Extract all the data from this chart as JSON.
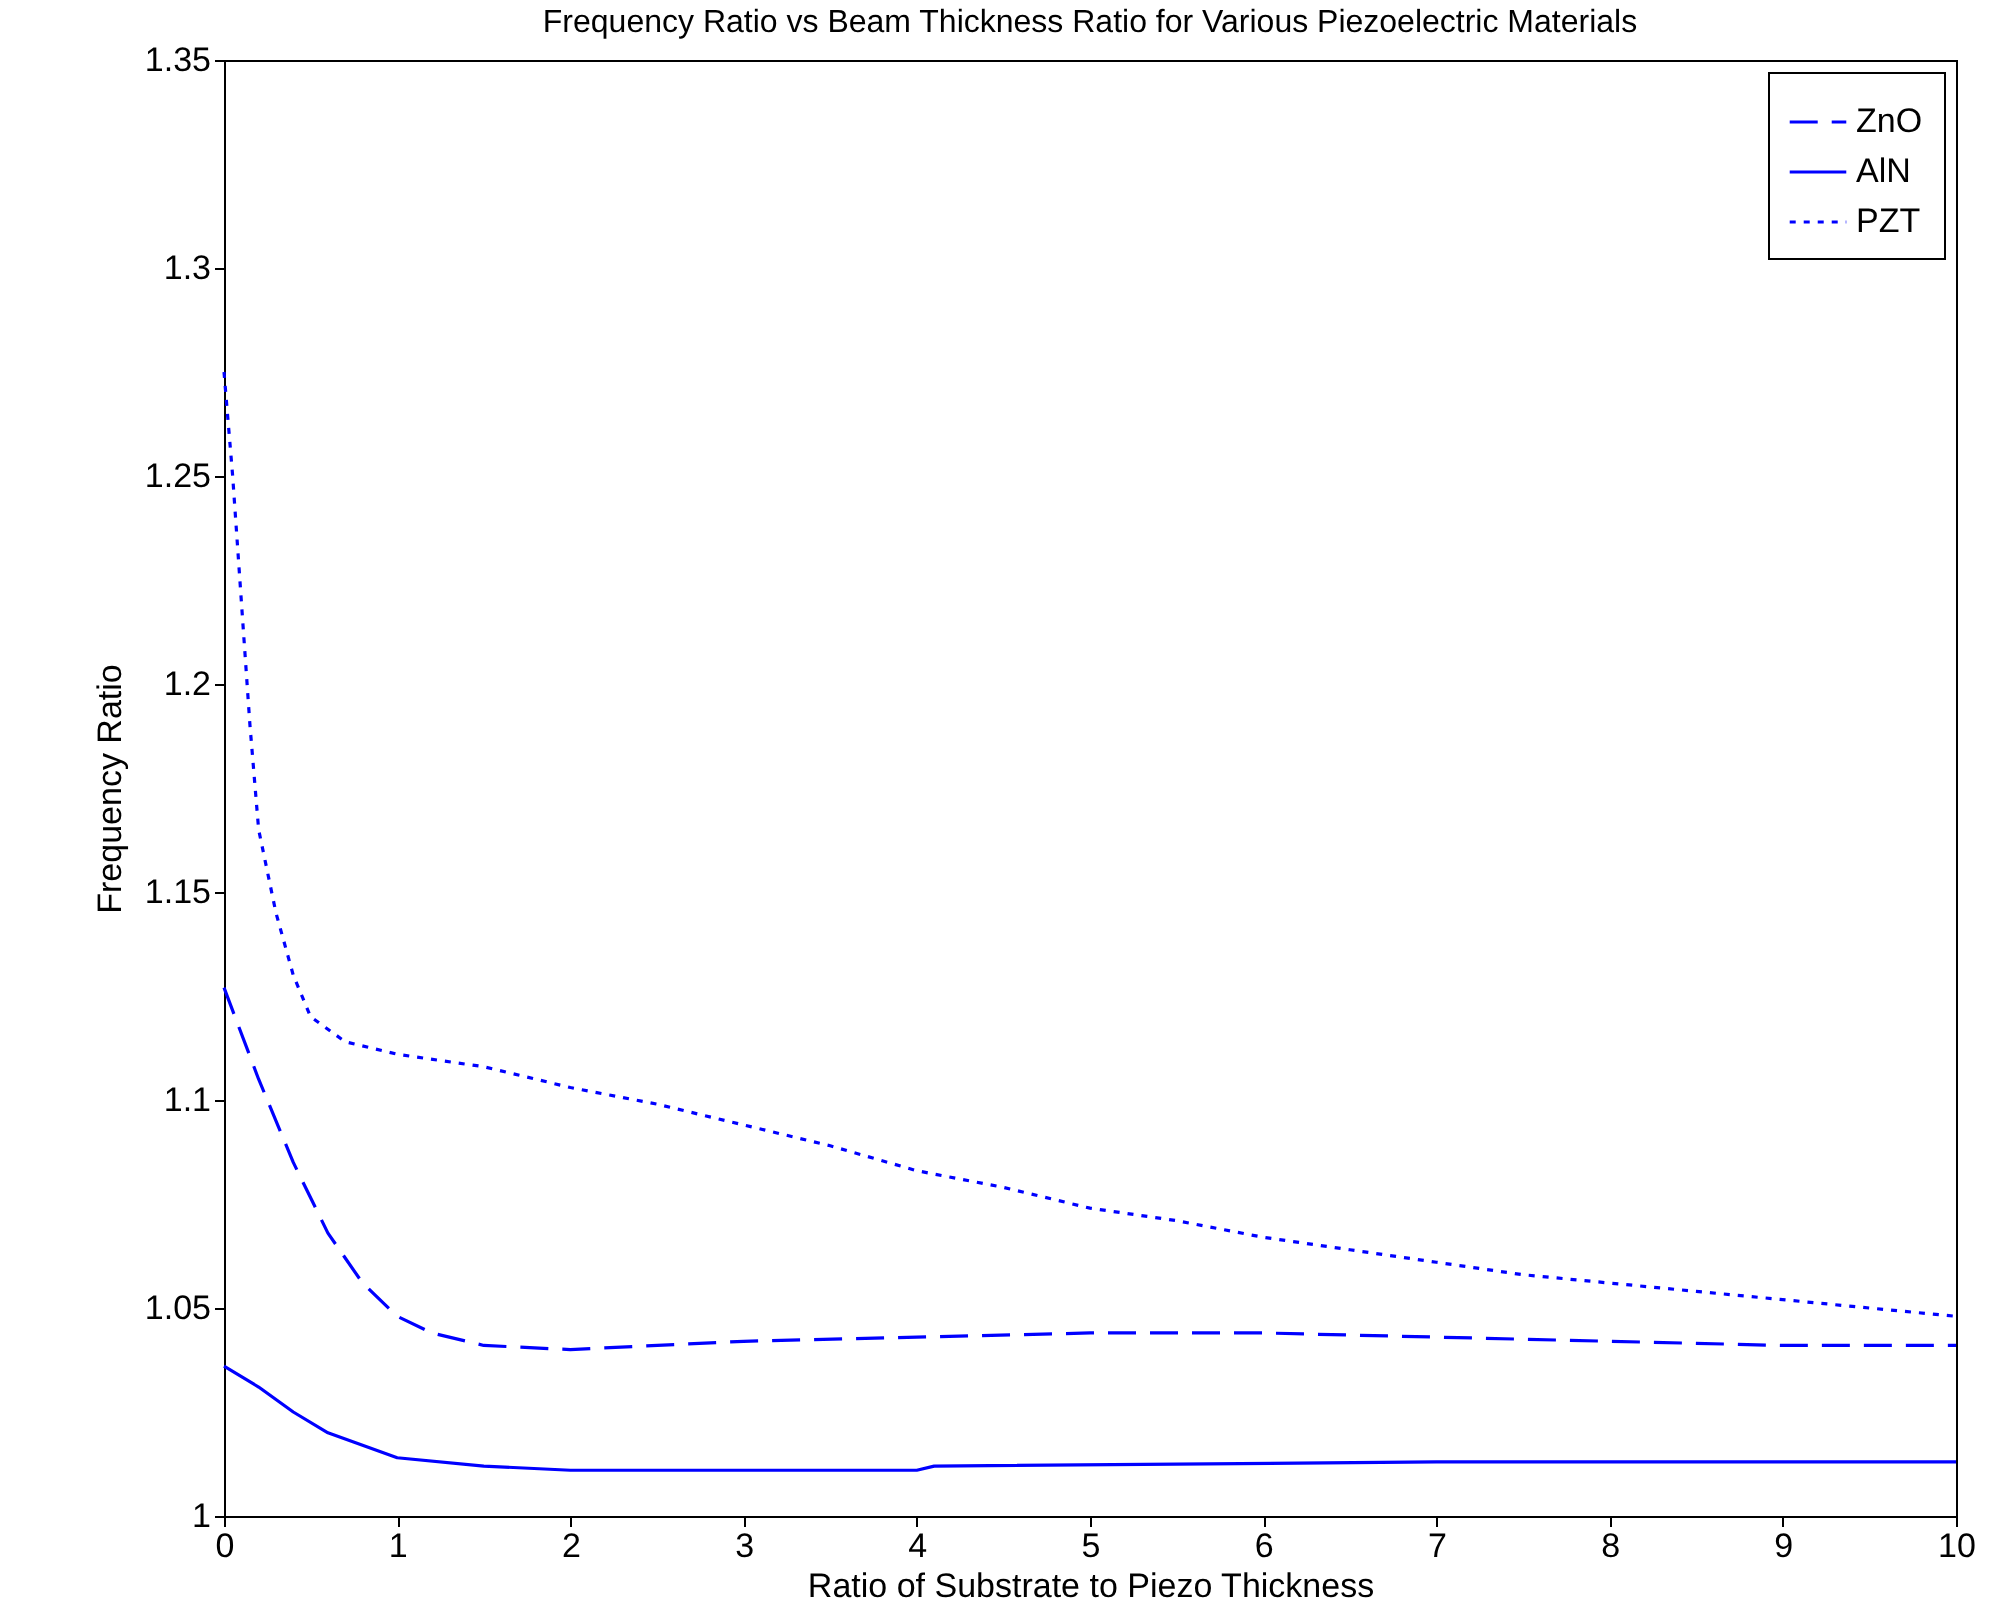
{
  "chart_data": {
    "type": "line",
    "title": "Frequency Ratio vs Beam Thickness Ratio for Various Piezoelectric Materials",
    "xlabel": "Ratio of Substrate to Piezo Thickness",
    "ylabel": "Frequency Ratio",
    "xlim": [
      0,
      10
    ],
    "xticks": [
      0,
      1,
      2,
      3,
      4,
      5,
      6,
      7,
      8,
      9,
      10
    ],
    "ylim": [
      1,
      1.35
    ],
    "yticks": [
      1,
      1.05,
      1.1,
      1.15,
      1.2,
      1.25,
      1.3,
      1.35
    ],
    "grid": false,
    "legend": "top right",
    "marker": "none",
    "series": [
      {
        "name": "ZnO",
        "color": "#0000ff",
        "line_style": "dashed",
        "x": [
          0,
          0.2,
          0.4,
          0.6,
          0.8,
          1,
          1.2,
          1.5,
          2,
          3,
          4,
          5,
          6,
          7,
          8,
          9,
          10
        ],
        "values": [
          1.127,
          1.105,
          1.085,
          1.068,
          1.056,
          1.048,
          1.044,
          1.041,
          1.04,
          1.042,
          1.043,
          1.044,
          1.044,
          1.043,
          1.042,
          1.041,
          1.041
        ]
      },
      {
        "name": "AlN",
        "color": "#0000ff",
        "line_style": "solid",
        "x": [
          0,
          0.2,
          0.4,
          0.6,
          0.8,
          1,
          1.5,
          2,
          4,
          4.1,
          7,
          10
        ],
        "values": [
          1.036,
          1.031,
          1.025,
          1.02,
          1.017,
          1.014,
          1.012,
          1.011,
          1.011,
          1.012,
          1.013,
          1.013
        ]
      },
      {
        "name": "PZT",
        "color": "#0000ff",
        "line_style": "dotted",
        "x": [
          0,
          0.05,
          0.1,
          0.15,
          0.2,
          0.3,
          0.4,
          0.5,
          0.7,
          1,
          1.5,
          2,
          2.5,
          3,
          3.5,
          4,
          4.5,
          5,
          5.5,
          6,
          6.5,
          7,
          7.5,
          8,
          8.5,
          9,
          9.5,
          10
        ],
        "values": [
          1.275,
          1.25,
          1.22,
          1.19,
          1.165,
          1.145,
          1.13,
          1.12,
          1.114,
          1.111,
          1.108,
          1.103,
          1.099,
          1.094,
          1.089,
          1.083,
          1.079,
          1.074,
          1.071,
          1.067,
          1.064,
          1.061,
          1.058,
          1.056,
          1.054,
          1.052,
          1.05,
          1.048
        ]
      }
    ]
  }
}
